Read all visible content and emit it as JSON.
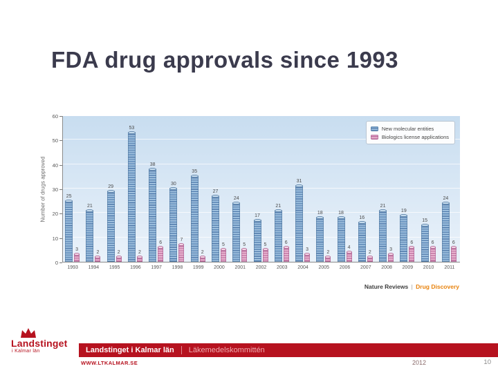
{
  "slide": {
    "title": "FDA drug approvals since 1993"
  },
  "chart_data": {
    "type": "bar",
    "title": "",
    "xlabel": "",
    "ylabel": "Number of drugs approved",
    "ylim": [
      0,
      60
    ],
    "yticks": [
      0,
      10,
      20,
      30,
      40,
      50,
      60
    ],
    "grid": true,
    "legend_position": "top-right",
    "categories": [
      "1993",
      "1994",
      "1995",
      "1996",
      "1997",
      "1998",
      "1999",
      "2000",
      "2001",
      "2002",
      "2003",
      "2004",
      "2005",
      "2006",
      "2007",
      "2008",
      "2009",
      "2010",
      "2011"
    ],
    "series": [
      {
        "name": "New molecular entities",
        "color": "#7fa9d0",
        "values": [
          25,
          21,
          29,
          53,
          38,
          30,
          35,
          27,
          24,
          17,
          21,
          31,
          18,
          18,
          16,
          21,
          19,
          15,
          24
        ]
      },
      {
        "name": "Biologics license applications",
        "color": "#dc9bc0",
        "values": [
          3,
          2,
          2,
          2,
          6,
          7,
          2,
          5,
          5,
          5,
          6,
          3,
          2,
          4,
          2,
          3,
          6,
          6,
          6
        ]
      }
    ],
    "credit_prefix": "Nature Reviews",
    "credit_divider": "|",
    "credit_title": "Drug Discovery"
  },
  "logo": {
    "name": "Landstinget",
    "sub": "i Kalmar län"
  },
  "footer": {
    "org_name": "Landstinget i Kalmar län",
    "committee": "Läkemedelskommittén",
    "website": "WWW.LTKALMAR.SE",
    "year": "2012",
    "page_number": "10",
    "accent_color": "#b6121f"
  }
}
